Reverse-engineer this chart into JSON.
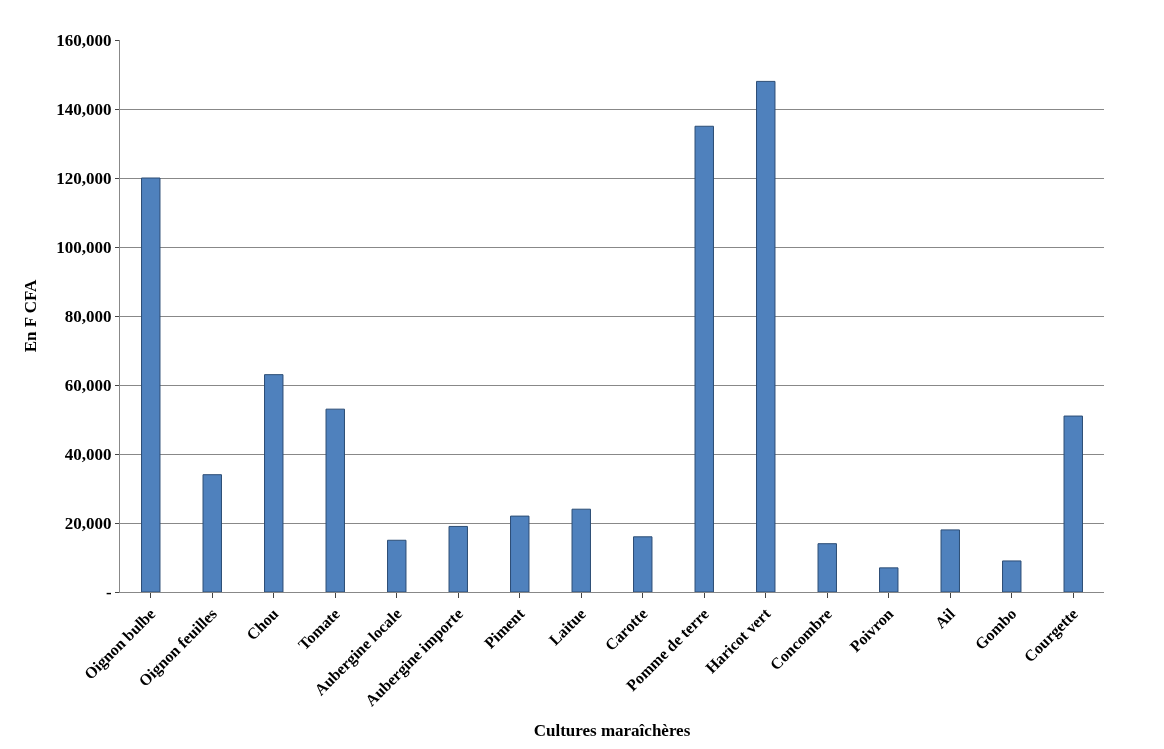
{
  "chart_data": {
    "type": "bar",
    "xlabel": "Cultures maraîchères",
    "ylabel": "En F CFA",
    "categories": [
      "Oignon bulbe",
      "Oignon feuilles",
      "Chou",
      "Tomate",
      "Aubergine locale",
      "Aubergine importe",
      "Piment",
      "Laitue",
      "Carotte",
      "Pomme de terre",
      "Haricot vert",
      "Concombre",
      "Poivron",
      "Ail",
      "Gombo",
      "Courgette"
    ],
    "values": [
      120000,
      34000,
      63000,
      53000,
      15000,
      19000,
      22000,
      24000,
      16000,
      135000,
      148000,
      14000,
      7000,
      18000,
      9000,
      51000
    ],
    "color": "#4f81bd",
    "ylim": [
      0,
      160000
    ],
    "yticks": [
      {
        "value": 0,
        "label": "-"
      },
      {
        "value": 20000,
        "label": "20,000"
      },
      {
        "value": 40000,
        "label": "40,000"
      },
      {
        "value": 60000,
        "label": "60,000"
      },
      {
        "value": 80000,
        "label": "80,000"
      },
      {
        "value": 100000,
        "label": "100,000"
      },
      {
        "value": 120000,
        "label": "120,000"
      },
      {
        "value": 140000,
        "label": "140,000"
      },
      {
        "value": 160000,
        "label": "160,000"
      }
    ],
    "grid": "y"
  }
}
